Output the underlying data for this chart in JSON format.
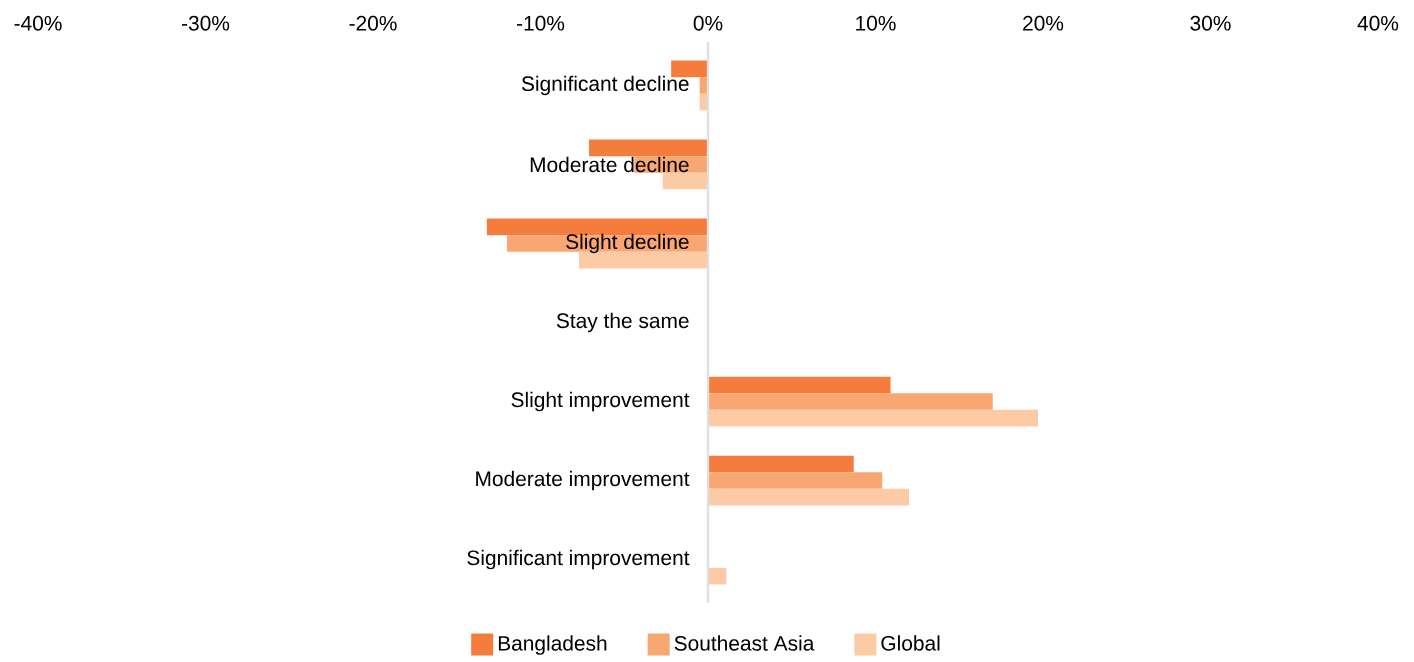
{
  "chart_data": {
    "type": "bar",
    "orientation": "horizontal",
    "categories": [
      "Significant decline",
      "Moderate decline",
      "Slight decline",
      "Stay the same",
      "Slight improvement",
      "Moderate improvement",
      "Significant improvement"
    ],
    "series": [
      {
        "name": "Bangladesh",
        "color": "#f47c3c",
        "values": [
          -2.2,
          -7.1,
          -13.2,
          0,
          10.9,
          8.7,
          0
        ]
      },
      {
        "name": "Southeast Asia",
        "color": "#f8a672",
        "values": [
          -0.5,
          -4.4,
          -12.0,
          0,
          17.0,
          10.4,
          0
        ]
      },
      {
        "name": "Global",
        "color": "#fccba6",
        "values": [
          -0.5,
          -2.7,
          -7.7,
          0,
          19.7,
          12.0,
          1.1
        ]
      }
    ],
    "xlim": [
      -40,
      40
    ],
    "xticks": [
      {
        "value": -40,
        "label": "-40%"
      },
      {
        "value": -30,
        "label": "-30%"
      },
      {
        "value": -20,
        "label": "-20%"
      },
      {
        "value": -10,
        "label": "-10%"
      },
      {
        "value": 0,
        "label": "0%"
      },
      {
        "value": 10,
        "label": "10%"
      },
      {
        "value": 20,
        "label": "20%"
      },
      {
        "value": 30,
        "label": "30%"
      },
      {
        "value": 40,
        "label": "40%"
      }
    ],
    "legend": "bottom"
  }
}
